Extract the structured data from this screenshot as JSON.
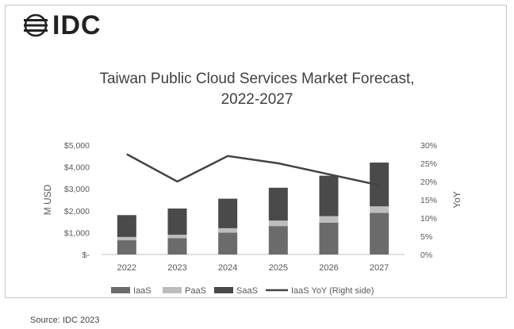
{
  "logo": {
    "text": "IDC"
  },
  "source": "Source: IDC 2023",
  "chart_data": {
    "type": "bar",
    "title_lines": [
      "Taiwan Public Cloud Services Market Forecast,",
      "2022-2027"
    ],
    "xlabel": "",
    "ylabel": "M USD",
    "ylabel_right": "YoY",
    "categories": [
      "2022",
      "2023",
      "2024",
      "2025",
      "2026",
      "2027"
    ],
    "stacked": true,
    "series": [
      {
        "name": "IaaS",
        "values": [
          650,
          750,
          1000,
          1300,
          1450,
          1900
        ]
      },
      {
        "name": "PaaS",
        "values": [
          150,
          150,
          200,
          250,
          300,
          300
        ]
      },
      {
        "name": "SaaS",
        "values": [
          1000,
          1200,
          1350,
          1500,
          1850,
          2000
        ]
      }
    ],
    "line": {
      "name": "IaaS YoY (Right side)",
      "values": [
        27.5,
        20,
        27,
        25,
        22,
        19
      ]
    },
    "ylim": [
      0,
      5000
    ],
    "y2lim": [
      0,
      30
    ],
    "yticks": [
      "$5,000",
      "$4,000",
      "$3,000",
      "$2,000",
      "$1,000",
      "$-"
    ],
    "y2ticks": [
      "30%",
      "25%",
      "20%",
      "15%",
      "10%",
      "5%",
      "0%"
    ],
    "legend_position": "bottom",
    "colors": {
      "IaaS": "#6b6b6b",
      "PaaS": "#bdbdbd",
      "SaaS": "#4a4a4a",
      "line": "#444444",
      "axis_text": "#595959"
    }
  }
}
